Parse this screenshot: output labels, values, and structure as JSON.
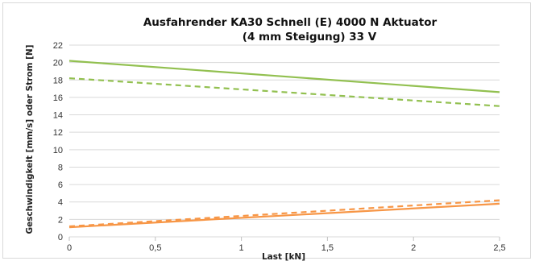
{
  "chart_data": {
    "type": "line",
    "title_lines": [
      "Ausfahrender KA30 Schnell (E) 4000 N Aktuator",
      "(4 mm Steigung) 33 V"
    ],
    "xlabel": "Last [kN]",
    "ylabel": "Geschwindigkeit [mm/s] oder Strom [N]",
    "xlim": [
      0,
      2.5
    ],
    "ylim": [
      0,
      22
    ],
    "x_ticks": [
      0,
      0.5,
      1,
      1.5,
      2,
      2.5
    ],
    "x_tick_labels": [
      "0",
      "0,5",
      "1",
      "1,5",
      "2",
      "2,5"
    ],
    "y_ticks": [
      0,
      2,
      4,
      6,
      8,
      10,
      12,
      14,
      16,
      18,
      20,
      22
    ],
    "y_tick_labels": [
      "0",
      "2",
      "4",
      "6",
      "8",
      "10",
      "12",
      "14",
      "16",
      "18",
      "20",
      "22"
    ],
    "grid": "horizontal",
    "legend": "none",
    "series": [
      {
        "x": [
          0,
          2.5
        ],
        "y": [
          20.2,
          16.6
        ],
        "color": "#92c050",
        "dash": "solid"
      },
      {
        "x": [
          0,
          2.5
        ],
        "y": [
          18.2,
          15.0
        ],
        "color": "#92c050",
        "dash": "dashed"
      },
      {
        "x": [
          0,
          2.5
        ],
        "y": [
          1.1,
          3.8
        ],
        "color": "#f79646",
        "dash": "solid"
      },
      {
        "x": [
          0,
          2.5
        ],
        "y": [
          1.2,
          4.2
        ],
        "color": "#f79646",
        "dash": "dashed"
      }
    ]
  }
}
